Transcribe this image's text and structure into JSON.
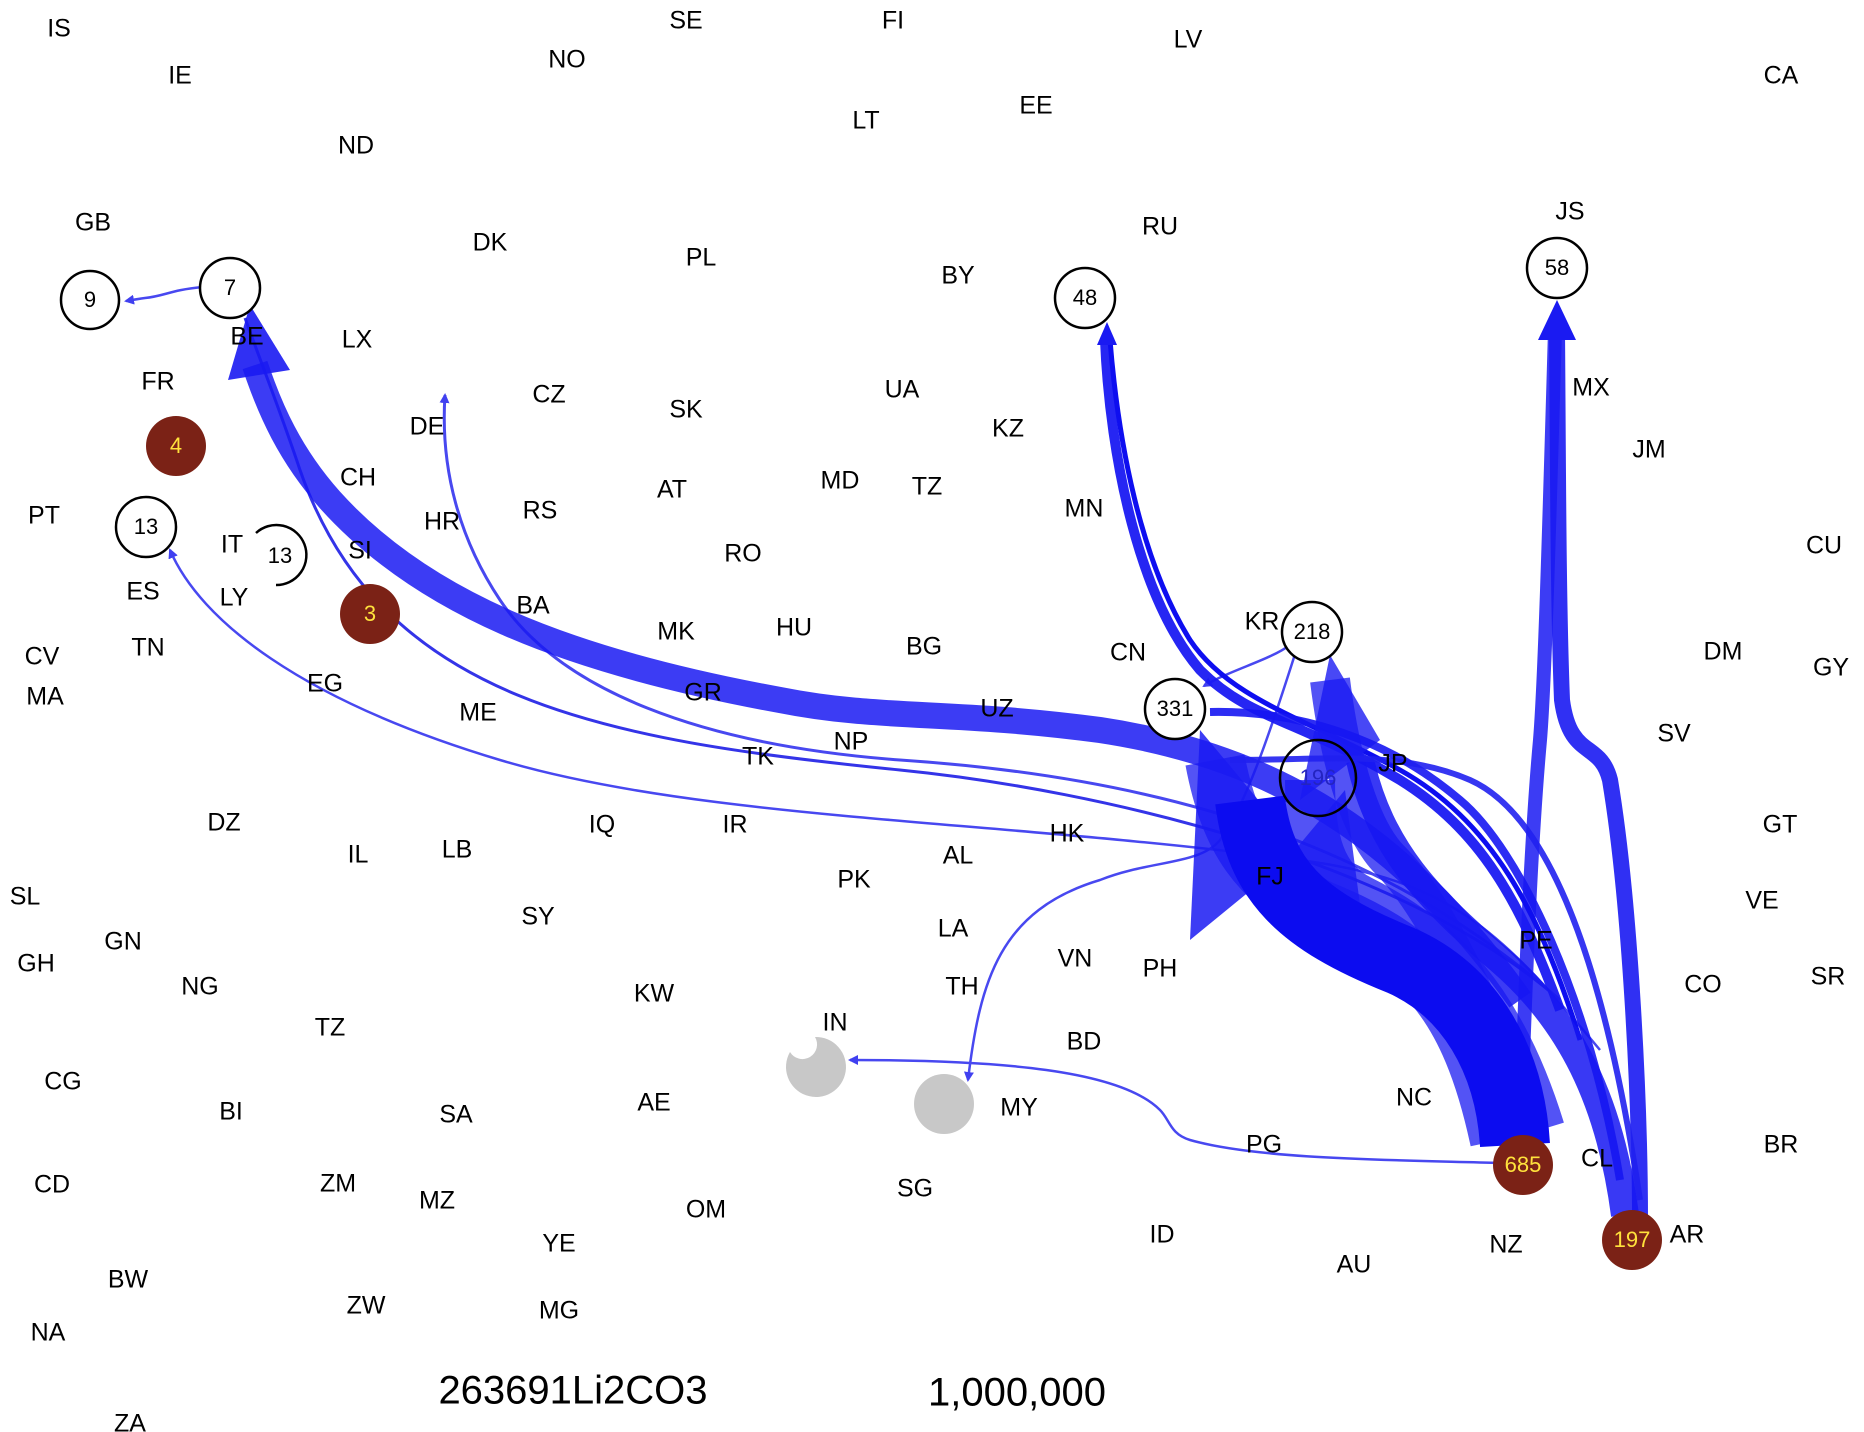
{
  "footer": {
    "code": "263691Li2CO3",
    "scale": "1,000,000"
  },
  "colors": {
    "flow": "#1515f0",
    "node_filled": "#7b2216",
    "node_filled_text": "#ffe23c",
    "node_gray": "#c8c8c8",
    "node_outline": "#000000"
  },
  "labels": [
    "IS",
    "SE",
    "FI",
    "LV",
    "IE",
    "NO",
    "CA",
    "EE",
    "LT",
    "ND",
    "GB",
    "RU",
    "JS",
    "DK",
    "PL",
    "BY",
    "LX",
    "BE",
    "FR",
    "CZ",
    "SK",
    "UA",
    "DE",
    "KZ",
    "MX",
    "JM",
    "AT",
    "MD",
    "TZ",
    "RS",
    "MN",
    "CH",
    "HR",
    "PT",
    "RO",
    "CU",
    "IT",
    "SI",
    "ES",
    "LY",
    "BA",
    "MK",
    "HU",
    "KR",
    "TN",
    "BG",
    "CN",
    "CV",
    "DM",
    "GY",
    "EG",
    "GR",
    "ME",
    "MA",
    "UZ",
    "SV",
    "NP",
    "TK",
    "JP",
    "IR",
    "HK",
    "DZ",
    "IQ",
    "GT",
    "AL",
    "IL",
    "LB",
    "FJ",
    "SL",
    "PK",
    "VE",
    "SY",
    "LA",
    "GH",
    "GN",
    "VN",
    "PH",
    "PE",
    "NG",
    "KW",
    "TH",
    "CO",
    "SR",
    "TZ",
    "IN",
    "BD",
    "NC",
    "CG",
    "AE",
    "BI",
    "SA",
    "MY",
    "PG",
    "BR",
    "CL",
    "CD",
    "ZM",
    "SG",
    "MZ",
    "OM",
    "ID",
    "AR",
    "NZ",
    "YE",
    "AU",
    "BW",
    "ZW",
    "MG",
    "NA",
    "ZA"
  ],
  "nodes": [
    {
      "id": "n9",
      "value": "9",
      "style": "outline"
    },
    {
      "id": "n7",
      "value": "7",
      "style": "outline"
    },
    {
      "id": "n48",
      "value": "48",
      "style": "outline"
    },
    {
      "id": "n58",
      "value": "58",
      "style": "outline"
    },
    {
      "id": "n4",
      "value": "4",
      "style": "filled"
    },
    {
      "id": "n13a",
      "value": "13",
      "style": "outline"
    },
    {
      "id": "n13b",
      "value": "13",
      "style": "outline"
    },
    {
      "id": "n3",
      "value": "3",
      "style": "filled"
    },
    {
      "id": "n218",
      "value": "218",
      "style": "outline"
    },
    {
      "id": "n331",
      "value": "331",
      "style": "outline"
    },
    {
      "id": "n196",
      "value": "196",
      "style": "outline"
    },
    {
      "id": "n685",
      "value": "685",
      "style": "filled"
    },
    {
      "id": "n197",
      "value": "197",
      "style": "filled"
    }
  ]
}
